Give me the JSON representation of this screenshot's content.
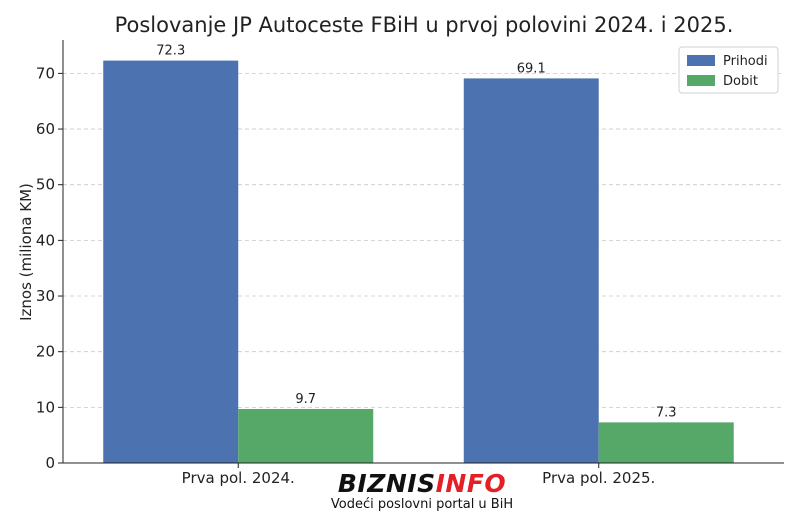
{
  "chart_data": {
    "type": "bar",
    "title": "Poslovanje JP Autoceste FBiH u prvoj polovini 2024. i 2025.",
    "xlabel": "",
    "ylabel": "Iznos (miliona KM)",
    "categories": [
      "Prva pol. 2024.",
      "Prva pol. 2025."
    ],
    "series": [
      {
        "name": "Prihodi",
        "values": [
          72.3,
          69.1
        ],
        "color": "#4c72b0"
      },
      {
        "name": "Dobit",
        "values": [
          9.7,
          7.3
        ],
        "color": "#55a868"
      }
    ],
    "ylim": [
      0,
      76
    ],
    "yticks": [
      0,
      10,
      20,
      30,
      40,
      50,
      60,
      70
    ],
    "grid": true,
    "legend_position": "top-right"
  },
  "watermark": {
    "logo_part1": "BIZNIS",
    "logo_part2": "INFO",
    "tagline": "Vodeći poslovni portal u BiH"
  }
}
